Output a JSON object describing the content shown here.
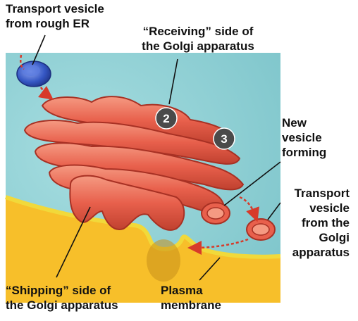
{
  "labels": {
    "transport_vesicle_rough_er": [
      "Transport vesicle",
      "from rough ER"
    ],
    "receiving_side": [
      "“Receiving” side of",
      "the Golgi apparatus"
    ],
    "new_vesicle": [
      "New",
      "vesicle",
      "forming"
    ],
    "transport_vesicle_golgi": [
      "Transport",
      "vesicle",
      "from the",
      "Golgi",
      "apparatus"
    ],
    "shipping_side": [
      "“Shipping” side of",
      "the Golgi apparatus"
    ],
    "plasma_membrane": [
      "Plasma",
      "membrane"
    ]
  },
  "step_badges": [
    "2",
    "3"
  ],
  "colors": {
    "cytoplasm": "#8ccfd3",
    "exterior": "#f7bf2a",
    "membrane": "#f1d93a",
    "golgi": "#e8604c",
    "golgi_dark": "#a83124",
    "er_vesicle": "#3557c4",
    "badge": "#4a4a4a",
    "arrow": "#d73a2a"
  }
}
